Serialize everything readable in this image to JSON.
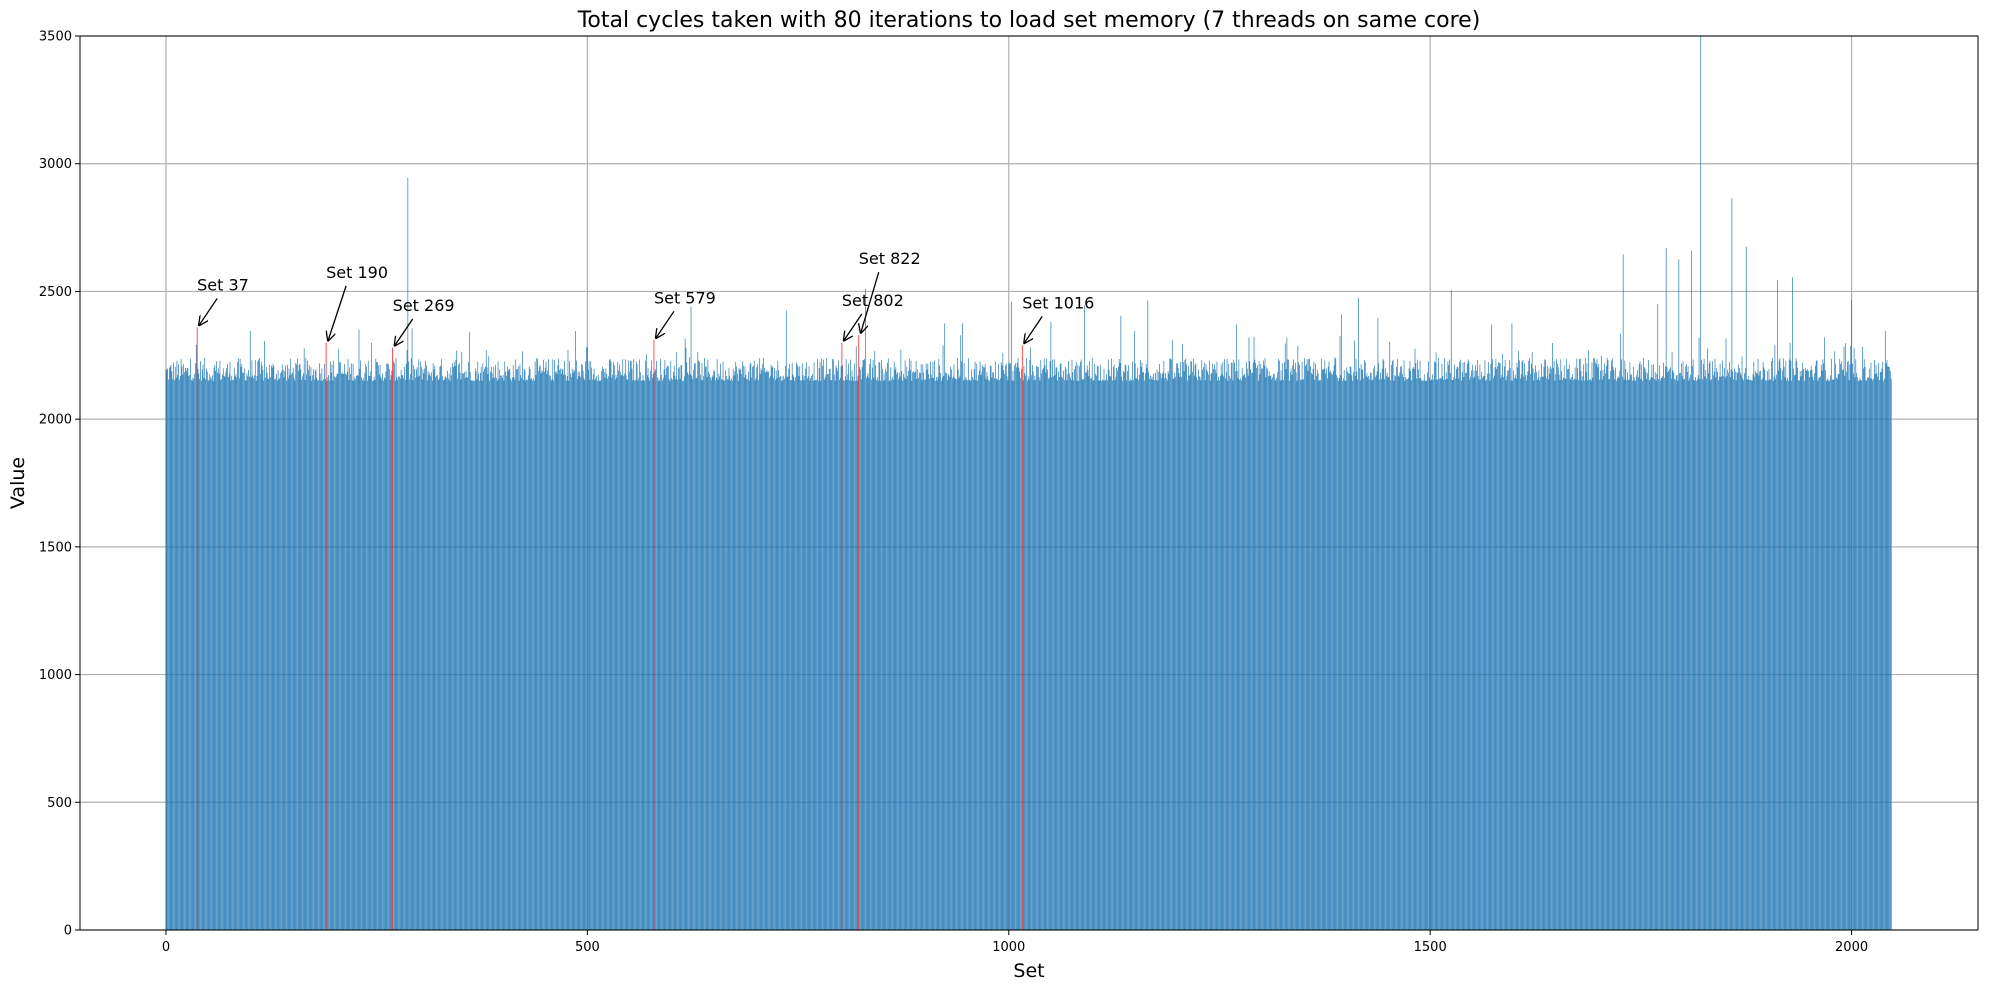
{
  "chart_data": {
    "type": "bar",
    "title": "Total cycles taken with 80 iterations to load set memory (7 threads on same core)",
    "xlabel": "Set",
    "ylabel": "Value",
    "xlim": [
      -102,
      2150
    ],
    "ylim": [
      0,
      3500
    ],
    "xticks": [
      0,
      500,
      1000,
      1500,
      2000
    ],
    "yticks": [
      0,
      500,
      1000,
      1500,
      2000,
      2500,
      3000,
      3500
    ],
    "grid": true,
    "n_bars": 2048,
    "baseline_range": [
      2150,
      2240
    ],
    "bar_color": "#1f77b4",
    "highlight_color": "#ff0000",
    "spikes": [
      [
        287,
        2945
      ],
      [
        1821,
        3500
      ],
      [
        1858,
        2865
      ],
      [
        1729,
        2645
      ],
      [
        1780,
        2670
      ],
      [
        1810,
        2660
      ],
      [
        1875,
        2675
      ],
      [
        1795,
        2625
      ],
      [
        1930,
        2555
      ],
      [
        1912,
        2545
      ],
      [
        2000,
        2465
      ],
      [
        1525,
        2505
      ],
      [
        1165,
        2465
      ],
      [
        1415,
        2475
      ],
      [
        830,
        2510
      ],
      [
        1003,
        2460
      ],
      [
        1438,
        2395
      ],
      [
        1395,
        2410
      ],
      [
        1133,
        2405
      ],
      [
        1090,
        2445
      ],
      [
        1770,
        2450
      ],
      [
        1573,
        2370
      ],
      [
        1597,
        2375
      ],
      [
        1270,
        2370
      ],
      [
        736,
        2425
      ],
      [
        623,
        2440
      ],
      [
        924,
        2375
      ],
      [
        945,
        2375
      ],
      [
        100,
        2345
      ],
      [
        229,
        2350
      ],
      [
        486,
        2345
      ],
      [
        360,
        2340
      ],
      [
        1050,
        2380
      ],
      [
        1726,
        2335
      ],
      [
        2040,
        2345
      ],
      [
        1968,
        2320
      ]
    ],
    "highlighted": [
      {
        "set": 37,
        "value": 2360,
        "label": "Set 37"
      },
      {
        "set": 190,
        "value": 2300,
        "label": "Set 190"
      },
      {
        "set": 269,
        "value": 2280,
        "label": "Set 269"
      },
      {
        "set": 579,
        "value": 2310,
        "label": "Set 579"
      },
      {
        "set": 802,
        "value": 2300,
        "label": "Set 802"
      },
      {
        "set": 822,
        "value": 2330,
        "label": "Set 822"
      },
      {
        "set": 1016,
        "value": 2290,
        "label": "Set 1016"
      }
    ]
  }
}
